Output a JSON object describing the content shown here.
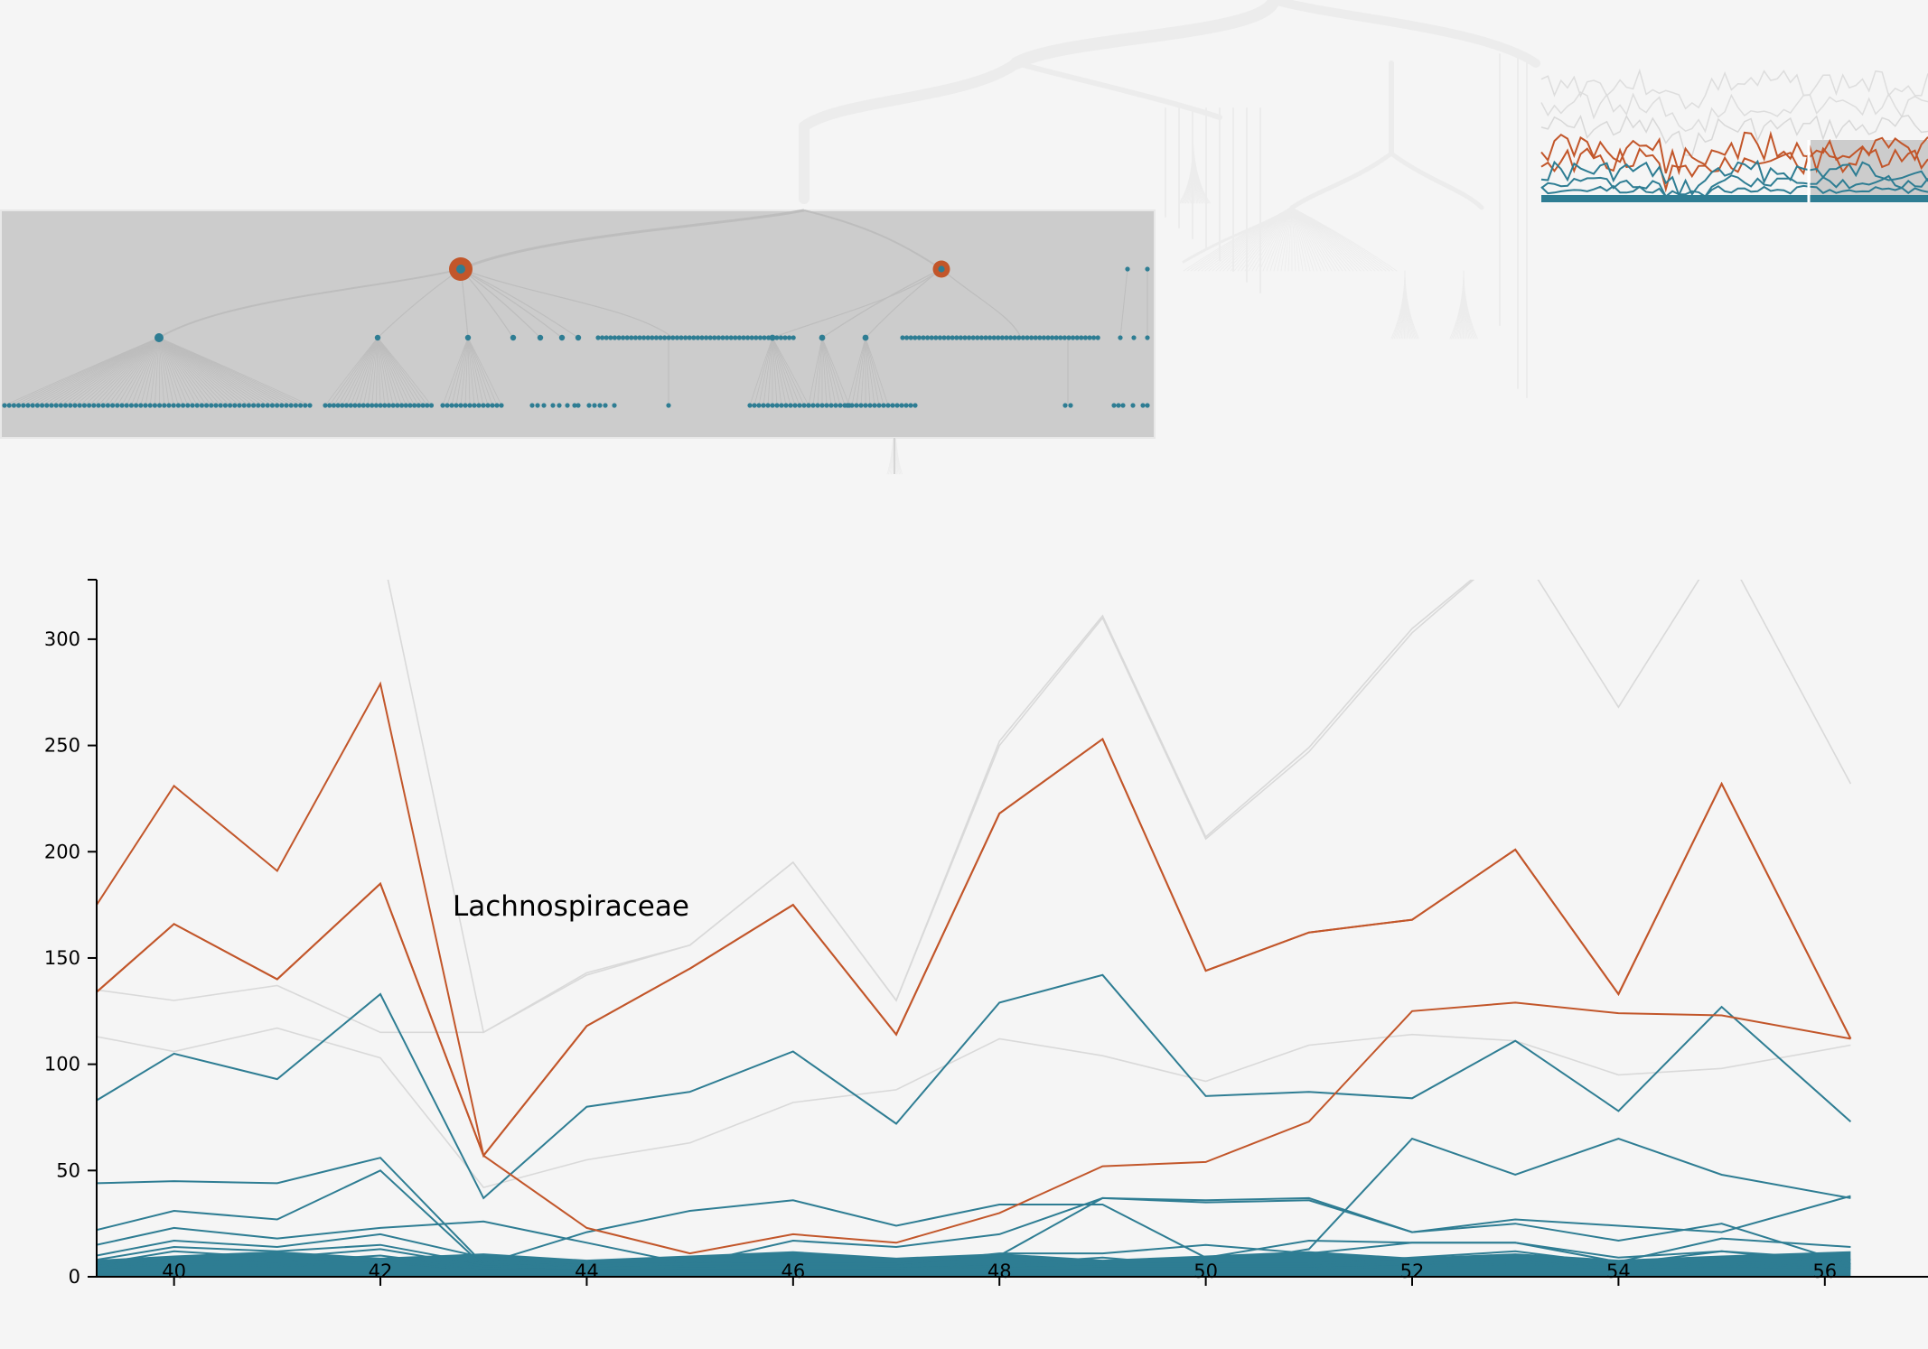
{
  "colors": {
    "background": "#f5f5f5",
    "highlight": "#c2562a",
    "series": "#2e7d93",
    "context": "#d9d9d9",
    "zoom_box": "#cccccc"
  },
  "annotation": "Lachnospiraceae",
  "chart_data": {
    "type": "line",
    "title": "",
    "xlabel": "",
    "ylabel": "",
    "xlim": [
      39.25,
      57
    ],
    "ylim": [
      0,
      328
    ],
    "x_ticks": [
      "40",
      "42",
      "44",
      "46",
      "48",
      "50",
      "52",
      "54",
      "56"
    ],
    "y_ticks": [
      "0",
      "50",
      "100",
      "150",
      "200",
      "250",
      "300"
    ],
    "grid": false,
    "legend": "none",
    "x": [
      39.25,
      40,
      41,
      42,
      43,
      44,
      45,
      46,
      47,
      48,
      49,
      50,
      51,
      52,
      53,
      54,
      55,
      56.25
    ],
    "series": [
      {
        "group": "highlight",
        "values": [
          175,
          231,
          191,
          279,
          57,
          118,
          145,
          175,
          114,
          218,
          253,
          144,
          162,
          168,
          201,
          133,
          232,
          112
        ]
      },
      {
        "group": "highlight",
        "values": [
          134,
          166,
          140,
          185,
          57,
          118,
          145,
          175,
          114,
          218,
          253,
          144,
          162,
          168,
          201,
          133,
          232,
          112
        ]
      },
      {
        "group": "highlight",
        "values": [
          134,
          166,
          140,
          185,
          57,
          23,
          11,
          20,
          16,
          30,
          52,
          54,
          73,
          125,
          129,
          124,
          123,
          112
        ]
      },
      {
        "group": "series",
        "values": [
          83,
          105,
          93,
          133,
          37,
          80,
          87,
          106,
          72,
          129,
          142,
          85,
          87,
          84,
          111,
          78,
          127,
          73
        ]
      },
      {
        "group": "series",
        "values": [
          44,
          45,
          44,
          56,
          6,
          21,
          31,
          36,
          24,
          34,
          34,
          9,
          17,
          16,
          16,
          7,
          18,
          14
        ]
      },
      {
        "group": "series",
        "values": [
          22,
          31,
          27,
          50,
          5,
          6,
          6,
          8,
          6,
          10,
          37,
          35,
          36,
          21,
          27,
          24,
          21,
          38
        ]
      },
      {
        "group": "series",
        "values": [
          15,
          23,
          18,
          23,
          26,
          16,
          6,
          17,
          14,
          20,
          37,
          36,
          37,
          21,
          25,
          17,
          25,
          6
        ]
      },
      {
        "group": "series",
        "values": [
          10,
          17,
          14,
          20,
          9,
          5,
          6,
          6,
          6,
          11,
          11,
          15,
          11,
          16,
          16,
          9,
          12,
          6
        ]
      },
      {
        "group": "series",
        "values": [
          8,
          14,
          12,
          15,
          6,
          4,
          5,
          5,
          5,
          6,
          9,
          5,
          13,
          65,
          48,
          65,
          48,
          37
        ]
      },
      {
        "group": "series",
        "values": [
          6,
          12,
          9,
          13,
          5,
          4,
          4,
          5,
          4,
          5,
          6,
          6,
          6,
          9,
          12,
          6,
          12,
          8
        ]
      },
      {
        "group": "series",
        "values": [
          5,
          9,
          7,
          10,
          4,
          3,
          4,
          4,
          4,
          4,
          5,
          5,
          5,
          6,
          8,
          5,
          7,
          5
        ]
      },
      {
        "group": "series",
        "values": [
          4,
          6,
          5,
          7,
          3,
          3,
          3,
          3,
          3,
          4,
          4,
          4,
          4,
          5,
          6,
          4,
          5,
          4
        ]
      },
      {
        "group": "context",
        "values": [
          345,
          345,
          345,
          345,
          115,
          143,
          156,
          195,
          130,
          250,
          310,
          206,
          247,
          303,
          345,
          345,
          345,
          345
        ]
      },
      {
        "group": "context",
        "values": [
          135,
          130,
          137,
          115,
          115,
          142,
          156,
          195,
          130,
          252,
          311,
          207,
          249,
          305,
          345,
          268,
          345,
          232
        ]
      },
      {
        "group": "context",
        "values": [
          113,
          106,
          117,
          103,
          42,
          55,
          63,
          82,
          88,
          112,
          104,
          92,
          109,
          114,
          111,
          95,
          98,
          109
        ]
      }
    ]
  },
  "tree_overview": {
    "highlight_node_count": 2,
    "leaf_count": 240
  }
}
